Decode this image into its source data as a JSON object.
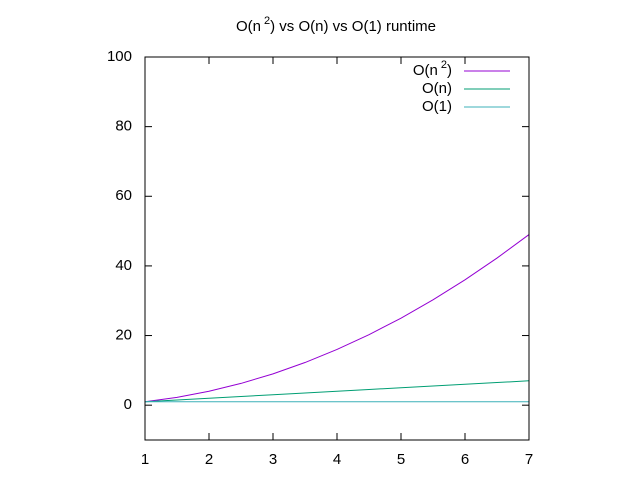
{
  "chart_data": {
    "type": "line",
    "title": [
      "O(n",
      "2",
      ") vs O(n) vs O(1) runtime"
    ],
    "x": [
      1,
      1.5,
      2,
      2.5,
      3,
      3.5,
      4,
      4.5,
      5,
      5.5,
      6,
      6.5,
      7
    ],
    "series": [
      {
        "name": [
          "O(n",
          "2",
          ")"
        ],
        "color": "#9400d3",
        "values": [
          1,
          2.25,
          4,
          6.25,
          9,
          12.25,
          16,
          20.25,
          25,
          30.25,
          36,
          42.25,
          49
        ]
      },
      {
        "name": "O(n)",
        "color": "#009e73",
        "values": [
          1,
          1.5,
          2,
          2.5,
          3,
          3.5,
          4,
          4.5,
          5,
          5.5,
          6,
          6.5,
          7
        ]
      },
      {
        "name": "O(1)",
        "color": "#3cb0b8",
        "values": [
          1,
          1,
          1,
          1,
          1,
          1,
          1,
          1,
          1,
          1,
          1,
          1,
          1
        ]
      }
    ],
    "xlim": [
      1,
      7
    ],
    "xticks": [
      1,
      2,
      3,
      4,
      5,
      6,
      7
    ],
    "ylim": [
      -10,
      100
    ],
    "yticks": [
      0,
      20,
      40,
      60,
      80,
      100
    ],
    "grid": false,
    "legend": "top-right"
  }
}
